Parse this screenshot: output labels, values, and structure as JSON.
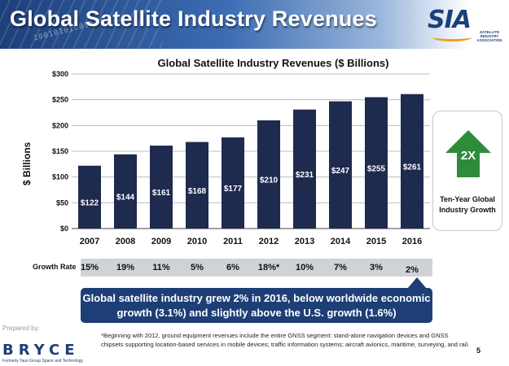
{
  "header": {
    "title": "Global Satellite Industry Revenues",
    "binary_deco": "10010101001101"
  },
  "logo": {
    "text": "SIA",
    "subtitle": "SATELLITE INDUSTRY ASSOCIATION"
  },
  "chart_data": {
    "type": "bar",
    "title": "Global Satellite Industry Revenues ($ Billions)",
    "xlabel": "",
    "ylabel": "$ Billions",
    "categories": [
      "2007",
      "2008",
      "2009",
      "2010",
      "2011",
      "2012",
      "2013",
      "2014",
      "2015",
      "2016"
    ],
    "values": [
      122,
      144,
      161,
      168,
      177,
      210,
      231,
      247,
      255,
      261
    ],
    "data_labels": [
      "$122",
      "$144",
      "$161",
      "$168",
      "$177",
      "$210",
      "$231",
      "$247",
      "$255",
      "$261"
    ],
    "ylim": [
      0,
      300
    ],
    "yticks": [
      0,
      50,
      100,
      150,
      200,
      250,
      300
    ],
    "ytick_labels": [
      "$0",
      "$50",
      "$100",
      "$150",
      "$200",
      "$250",
      "$300"
    ],
    "bar_color": "#1e2a4e",
    "grid": true,
    "legend": "none"
  },
  "growth": {
    "label": "Growth Rate",
    "values": [
      "15%",
      "19%",
      "11%",
      "5%",
      "6%",
      "18%*",
      "10%",
      "7%",
      "3%",
      "2%"
    ]
  },
  "side_box": {
    "multiplier": "2X",
    "caption": "Ten-Year Global Industry Growth",
    "arrow_color": "#2e8b3a"
  },
  "callout": {
    "text": "Global satellite industry grew 2% in 2016, below worldwide economic growth (3.1%) and slightly above the U.S. growth (1.6%)"
  },
  "footer": {
    "prepared_by": "Prepared by:",
    "company": "BRYCE",
    "company_sub": "Formerly Tauri Group Space and Technology",
    "footnote": "*Beginning with 2012, ground equipment revenues include the entire GNSS segment: stand-alone navigation devices and GNSS chipsets supporting location-based services in mobile devices; traffic information systems; aircraft avionics, maritime, surveying, and rail.",
    "page_number": "5"
  },
  "colors": {
    "header_blue": "#1d3f7a",
    "bar": "#1e2a4e",
    "callout": "#1e3e76",
    "growth_band": "#cfd3d8"
  }
}
